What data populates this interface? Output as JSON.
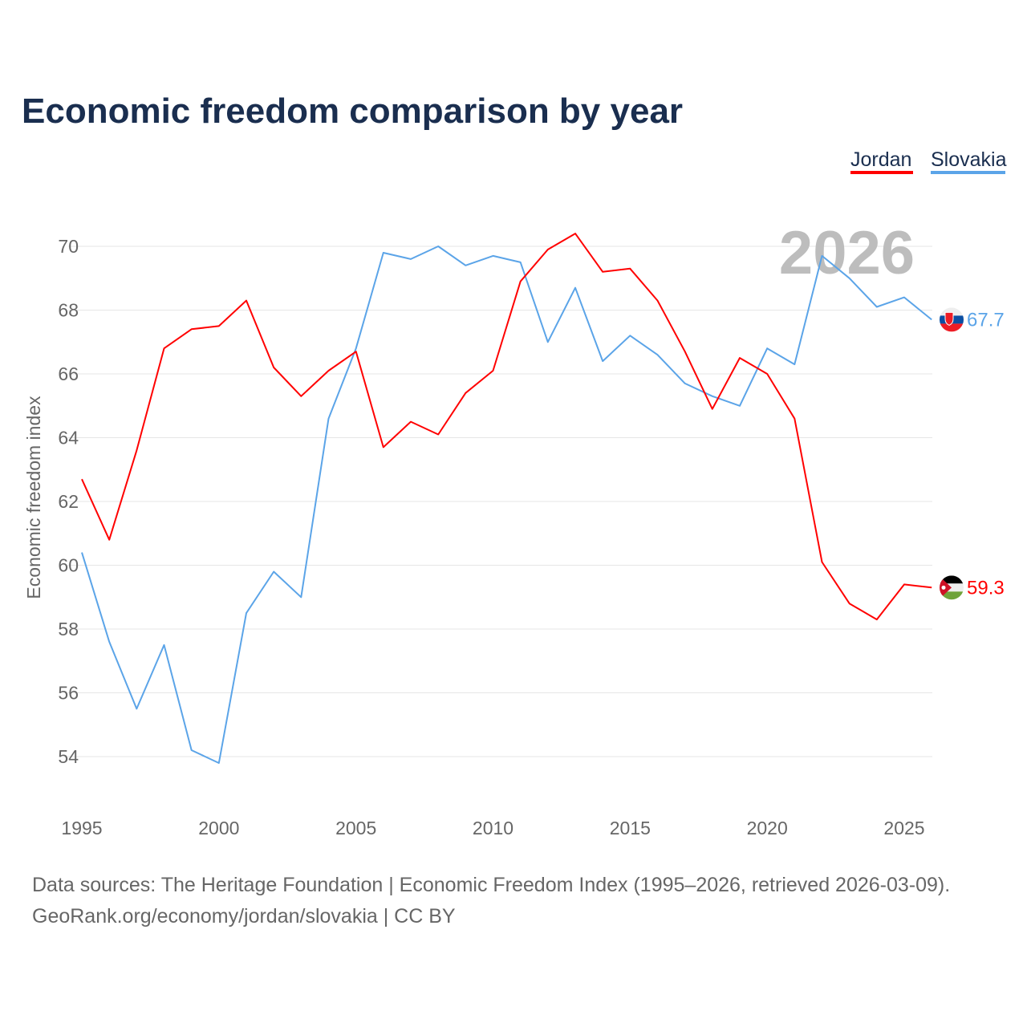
{
  "title": "Economic freedom comparison by year",
  "source_line1": "Data sources: The Heritage Foundation | Economic Freedom Index (1995–2026, retrieved 2026-03-09).",
  "source_line2": "GeoRank.org/economy/jordan/slovakia | CC BY",
  "chart_data": {
    "type": "line",
    "title": "Economic freedom comparison by year",
    "xlabel": "",
    "ylabel": "Economic freedom index",
    "xlim": [
      1995,
      2026
    ],
    "ylim": [
      52.5,
      71
    ],
    "xticks": [
      1995,
      2000,
      2005,
      2010,
      2015,
      2020,
      2025
    ],
    "yticks": [
      54,
      56,
      58,
      60,
      62,
      64,
      66,
      68,
      70
    ],
    "grid": true,
    "legend_position": "top-right",
    "annotation_year": "2026",
    "x": [
      1995,
      1996,
      1997,
      1998,
      1999,
      2000,
      2001,
      2002,
      2003,
      2004,
      2005,
      2006,
      2007,
      2008,
      2009,
      2010,
      2011,
      2012,
      2013,
      2014,
      2015,
      2016,
      2017,
      2018,
      2019,
      2020,
      2021,
      2022,
      2023,
      2024,
      2025,
      2026
    ],
    "series": [
      {
        "name": "Jordan",
        "color": "#ff0000",
        "end_label": "59.3",
        "flag": "jordan-flag",
        "values": [
          62.7,
          60.8,
          63.6,
          66.8,
          67.4,
          67.5,
          68.3,
          66.2,
          65.3,
          66.1,
          66.7,
          63.7,
          64.5,
          64.1,
          65.4,
          66.1,
          68.9,
          69.9,
          70.4,
          69.2,
          69.3,
          68.3,
          66.7,
          64.9,
          66.5,
          66.0,
          64.6,
          60.1,
          58.8,
          58.3,
          59.4,
          59.3
        ]
      },
      {
        "name": "Slovakia",
        "color": "#5ba4e8",
        "end_label": "67.7",
        "flag": "slovakia-flag",
        "values": [
          60.4,
          57.6,
          55.5,
          57.5,
          54.2,
          53.8,
          58.5,
          59.8,
          59.0,
          64.6,
          66.8,
          69.8,
          69.6,
          70.0,
          69.4,
          69.7,
          69.5,
          67.0,
          68.7,
          66.4,
          67.2,
          66.6,
          65.7,
          65.3,
          65.0,
          66.8,
          66.3,
          69.7,
          69.0,
          68.1,
          68.4,
          67.7
        ]
      }
    ]
  }
}
